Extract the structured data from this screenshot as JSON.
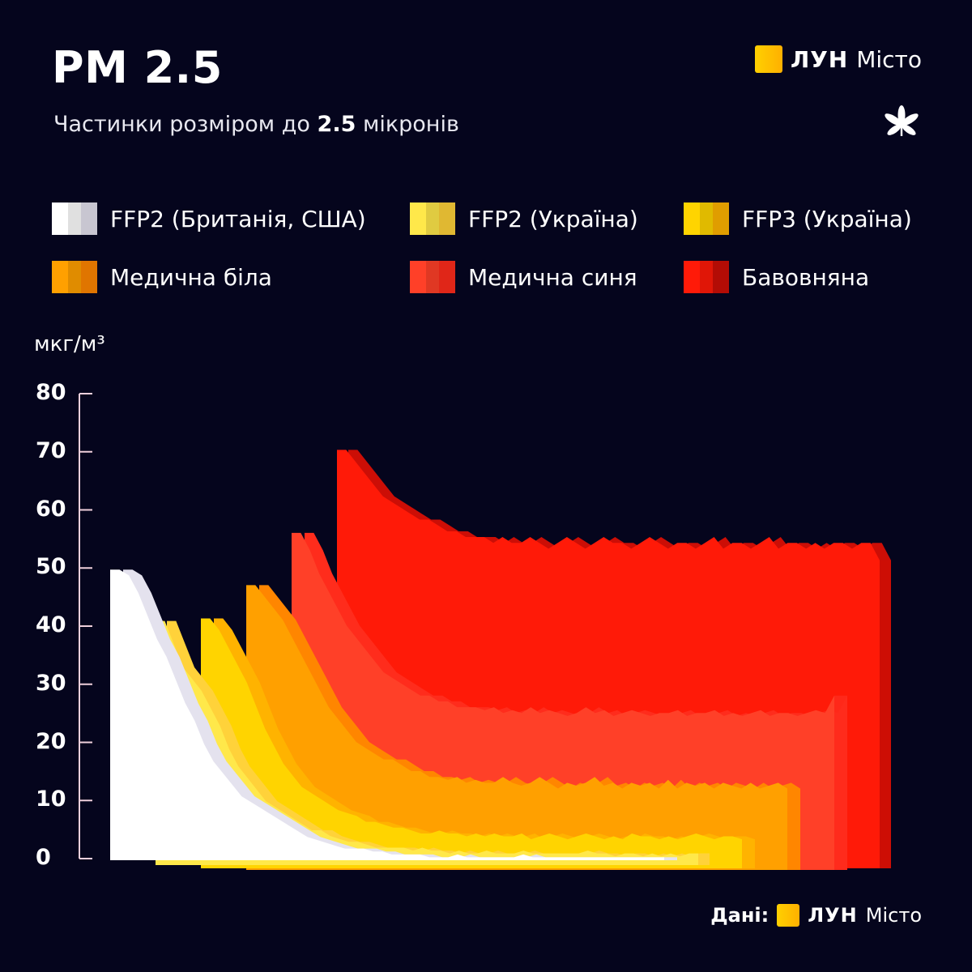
{
  "header": {
    "title": "PM 2.5",
    "subtitle_pre": "Частинки розміром до ",
    "subtitle_bold": "2.5",
    "subtitle_post": " мікронів"
  },
  "brand": {
    "word": "ЛУН",
    "sub": "Місто",
    "accent": "#ffb000"
  },
  "footer": {
    "label": "Дані:",
    "word": "ЛУН",
    "sub": "Місто"
  },
  "legend": [
    {
      "label": "FFP2 (Британія, США)",
      "color": "#ffffff",
      "shade": "#e4e2ee"
    },
    {
      "label": "FFP2 (Україна)",
      "color": "#ffe84a",
      "shade": "#ffd23a"
    },
    {
      "label": "FFP3 (Україна)",
      "color": "#ffd400",
      "shade": "#ffb300"
    },
    {
      "label": "Медична біла",
      "color": "#ffa000",
      "shade": "#ff8600"
    },
    {
      "label": "Медична синя",
      "color": "#ff4028",
      "shade": "#ff2c1c"
    },
    {
      "label": "Бавовняна",
      "color": "#ff1a08",
      "shade": "#cc0e06"
    }
  ],
  "chart_data": {
    "type": "area",
    "style": "3d stacked ridgeline (series offset in depth)",
    "ylabel": "мкг/м³",
    "ylim": [
      0,
      80
    ],
    "yticks": [
      0,
      10,
      20,
      30,
      40,
      50,
      60,
      70,
      80
    ],
    "xlabel": "",
    "series": [
      {
        "name": "FFP2 (Британія, США)",
        "color": "#ffffff",
        "values": [
          50,
          50,
          49,
          46,
          42,
          38,
          35,
          31,
          27,
          24,
          20,
          17,
          15,
          13,
          11,
          10,
          9,
          8,
          7,
          6,
          5,
          4,
          3.5,
          3,
          2.5,
          2,
          2,
          2,
          1.5,
          1.5,
          1,
          1,
          1,
          1,
          0.5,
          0.5,
          0.5,
          1,
          0.5,
          0.5,
          0.5,
          0.5,
          0.5,
          0.5,
          1,
          0.5,
          0.5,
          0.5,
          0.5,
          0.5,
          0.5,
          0.5,
          0.5,
          0.5,
          0.5,
          0.5,
          0.5,
          0.5,
          0.5,
          0.5
        ]
      },
      {
        "name": "FFP2 (Україна)",
        "color": "#ffe84a",
        "values": [
          42,
          42,
          38,
          34,
          32,
          30,
          27,
          24,
          20,
          17,
          15,
          13,
          11,
          10,
          9,
          8,
          7,
          6,
          6,
          5,
          4.5,
          4,
          4,
          3.5,
          3,
          3,
          3,
          3,
          2.5,
          3,
          2.5,
          2.5,
          2,
          2.5,
          2,
          2,
          2.5,
          2,
          2,
          2,
          2.5,
          2,
          2,
          2,
          2,
          2,
          2,
          2.5,
          2,
          2,
          1.5,
          2,
          2,
          1.5,
          2,
          1.5,
          2,
          1.5,
          2,
          2
        ]
      },
      {
        "name": "FFP3 (Україна)",
        "color": "#ffd400",
        "values": [
          43,
          43,
          41,
          38,
          35,
          32,
          28,
          24,
          21,
          18,
          16,
          14,
          13,
          12,
          11,
          10,
          9.5,
          9,
          8,
          8,
          7.5,
          7,
          7,
          6.5,
          6,
          6,
          6.5,
          6,
          6,
          5.5,
          6,
          5.5,
          6,
          5.5,
          5.5,
          6,
          5,
          5.5,
          6,
          5.5,
          5,
          5.5,
          6,
          5.5,
          5,
          5.5,
          5,
          6,
          5.5,
          5.5,
          5,
          5.5,
          5,
          5.5,
          6,
          5.5,
          5,
          5.5,
          5.5,
          5
        ]
      },
      {
        "name": "Медична біла",
        "color": "#ffa000",
        "values": [
          49,
          49,
          47,
          45,
          43,
          40,
          37,
          34,
          31,
          28,
          26,
          24,
          22,
          21,
          20,
          19,
          19,
          18,
          17,
          17,
          16,
          16,
          15.5,
          16,
          15,
          15.5,
          15,
          15,
          16,
          15,
          14.5,
          15,
          16,
          15,
          14,
          15,
          14.5,
          15,
          16,
          14.5,
          15,
          14,
          15,
          14.5,
          15,
          14,
          15.5,
          14,
          15,
          14.5,
          15,
          14,
          15,
          14.5,
          14,
          15,
          14,
          14.5,
          15,
          14
        ]
      },
      {
        "name": "Медична синя",
        "color": "#ff4028",
        "values": [
          58,
          58,
          55,
          51,
          48,
          45,
          42,
          40,
          38,
          36,
          34,
          33,
          32,
          31,
          30,
          30,
          29,
          29,
          28,
          28,
          28,
          27.5,
          28,
          27,
          27.5,
          27,
          28,
          27,
          27.5,
          27,
          26.5,
          27,
          28,
          27,
          27.5,
          26.5,
          27,
          27.5,
          27,
          26.5,
          27,
          27,
          27.5,
          26.5,
          27,
          27,
          27.5,
          26.5,
          27,
          26.5,
          27,
          27.5,
          26.5,
          27,
          27,
          26.5,
          27,
          27.5,
          27,
          30
        ]
      },
      {
        "name": "Бавовняна",
        "color": "#ff1a08",
        "values": [
          72,
          72,
          70,
          68,
          66,
          64,
          63,
          62,
          61,
          60,
          60,
          59,
          58,
          58,
          57,
          57,
          57,
          56,
          57,
          56,
          56,
          57,
          56,
          55,
          56,
          57,
          56,
          55,
          56,
          57,
          56,
          56,
          55,
          56,
          57,
          56,
          55,
          56,
          56,
          55,
          56,
          57,
          55,
          56,
          56,
          55,
          56,
          57,
          55,
          56,
          56,
          55,
          56,
          55,
          56,
          56,
          55,
          56,
          56,
          53
        ]
      }
    ]
  }
}
